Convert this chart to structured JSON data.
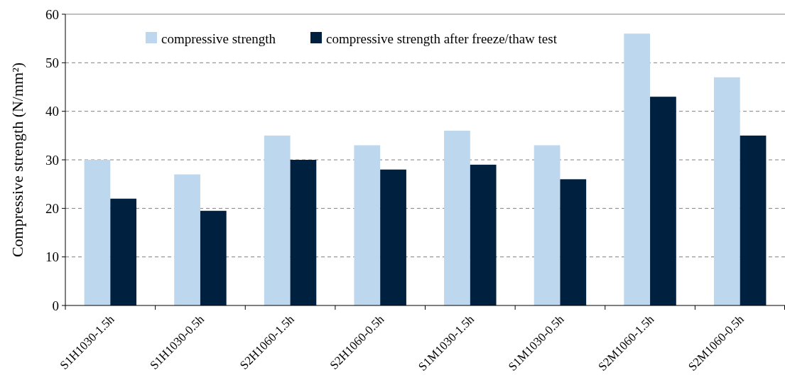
{
  "chart_data": {
    "type": "bar",
    "ylabel": "Compressive strength (N/mm²)",
    "categories": [
      "S1H1030-1.5h",
      "S1H1030-0.5h",
      "S2H1060-1.5h",
      "S2H1060-0.5h",
      "S1M1030-1.5h",
      "S1M1030-0.5h",
      "S2M1060-1.5h",
      "S2M1060-0.5h"
    ],
    "series": [
      {
        "name": "compressive strength",
        "color": "#bdd7ee",
        "values": [
          30,
          27,
          35,
          33,
          36,
          33,
          56,
          47
        ]
      },
      {
        "name": "compressive strength after freeze/thaw test",
        "color": "#00203f",
        "values": [
          22,
          19.5,
          30,
          28,
          29,
          26,
          43,
          35
        ]
      }
    ],
    "ylim": [
      0,
      60
    ],
    "yticks": [
      0,
      10,
      20,
      30,
      40,
      50,
      60
    ],
    "grid": "y",
    "legend": "top"
  }
}
